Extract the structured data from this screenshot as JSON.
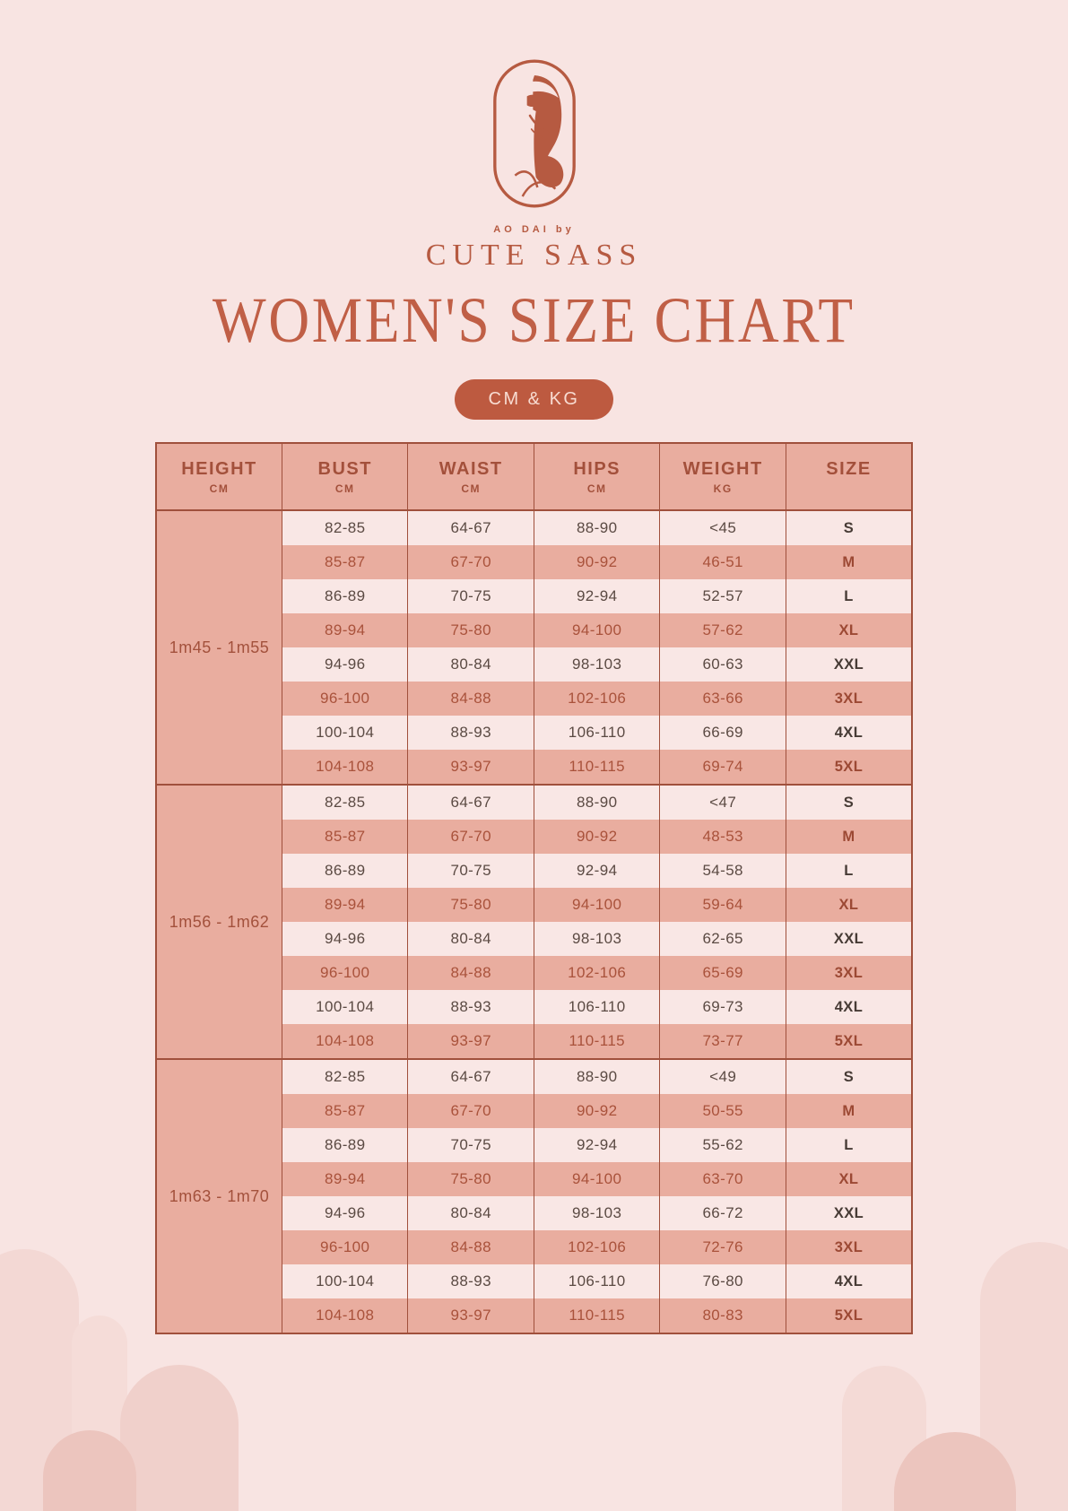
{
  "brand": {
    "logo_icon": "woman-in-ao-dai-logo",
    "tagline": "AO DAI by",
    "name": "CUTE SASS"
  },
  "title": "WOMEN'S SIZE CHART",
  "badge": {
    "label": "CM & KG"
  },
  "table": {
    "columns": [
      {
        "label": "HEIGHT",
        "unit": "CM"
      },
      {
        "label": "BUST",
        "unit": "CM"
      },
      {
        "label": "WAIST",
        "unit": "CM"
      },
      {
        "label": "HIPS",
        "unit": "CM"
      },
      {
        "label": "WEIGHT",
        "unit": "KG"
      },
      {
        "label": "SIZE",
        "unit": ""
      }
    ],
    "groups": [
      {
        "height": "1m45 - 1m55",
        "rows": [
          [
            "82-85",
            "64-67",
            "88-90",
            "<45",
            "S"
          ],
          [
            "85-87",
            "67-70",
            "90-92",
            "46-51",
            "M"
          ],
          [
            "86-89",
            "70-75",
            "92-94",
            "52-57",
            "L"
          ],
          [
            "89-94",
            "75-80",
            "94-100",
            "57-62",
            "XL"
          ],
          [
            "94-96",
            "80-84",
            "98-103",
            "60-63",
            "XXL"
          ],
          [
            "96-100",
            "84-88",
            "102-106",
            "63-66",
            "3XL"
          ],
          [
            "100-104",
            "88-93",
            "106-110",
            "66-69",
            "4XL"
          ],
          [
            "104-108",
            "93-97",
            "110-115",
            "69-74",
            "5XL"
          ]
        ]
      },
      {
        "height": "1m56 - 1m62",
        "rows": [
          [
            "82-85",
            "64-67",
            "88-90",
            "<47",
            "S"
          ],
          [
            "85-87",
            "67-70",
            "90-92",
            "48-53",
            "M"
          ],
          [
            "86-89",
            "70-75",
            "92-94",
            "54-58",
            "L"
          ],
          [
            "89-94",
            "75-80",
            "94-100",
            "59-64",
            "XL"
          ],
          [
            "94-96",
            "80-84",
            "98-103",
            "62-65",
            "XXL"
          ],
          [
            "96-100",
            "84-88",
            "102-106",
            "65-69",
            "3XL"
          ],
          [
            "100-104",
            "88-93",
            "106-110",
            "69-73",
            "4XL"
          ],
          [
            "104-108",
            "93-97",
            "110-115",
            "73-77",
            "5XL"
          ]
        ]
      },
      {
        "height": "1m63 - 1m70",
        "rows": [
          [
            "82-85",
            "64-67",
            "88-90",
            "<49",
            "S"
          ],
          [
            "85-87",
            "67-70",
            "90-92",
            "50-55",
            "M"
          ],
          [
            "86-89",
            "70-75",
            "92-94",
            "55-62",
            "L"
          ],
          [
            "89-94",
            "75-80",
            "94-100",
            "63-70",
            "XL"
          ],
          [
            "94-96",
            "80-84",
            "98-103",
            "66-72",
            "XXL"
          ],
          [
            "96-100",
            "84-88",
            "102-106",
            "72-76",
            "3XL"
          ],
          [
            "100-104",
            "88-93",
            "106-110",
            "76-80",
            "4XL"
          ],
          [
            "104-108",
            "93-97",
            "110-115",
            "80-83",
            "5XL"
          ]
        ]
      }
    ]
  },
  "colors": {
    "background": "#f8e4e2",
    "accent": "#bd5a40",
    "title": "#c05f46",
    "table_salmon": "#e9ad9f",
    "table_light_row": "#f9e7e5",
    "border": "#a0503c",
    "dark_row_text": "#a9523b",
    "light_row_text": "#5b4a43"
  }
}
